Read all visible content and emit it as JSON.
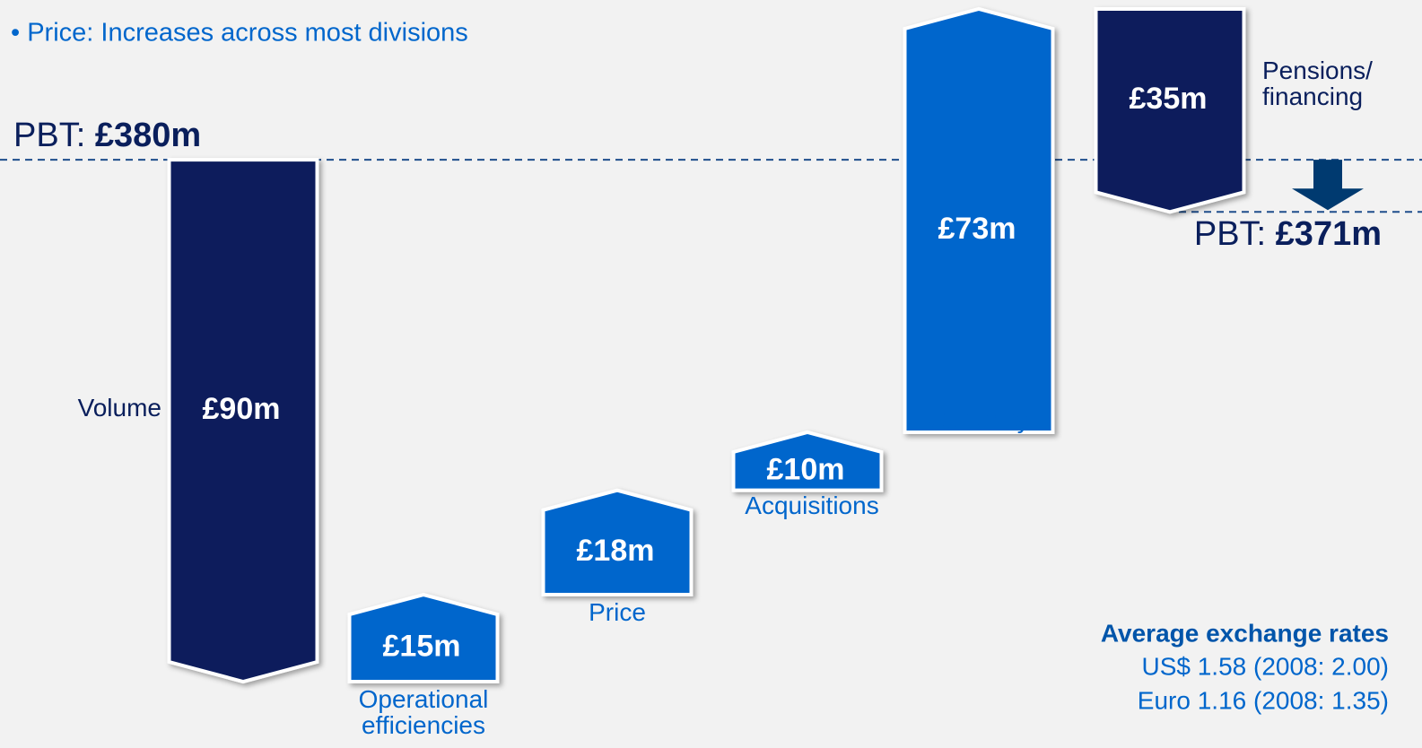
{
  "chart_data": {
    "type": "waterfall",
    "bullet": "• Price: Increases across most divisions",
    "start": {
      "label": "PBT:",
      "value": 380,
      "value_label": "£380m"
    },
    "end": {
      "label": "PBT:",
      "value": 371,
      "value_label": "£371m"
    },
    "categories": [
      "Volume",
      "Operational efficiencies",
      "Price",
      "Acquisitions",
      "Currency",
      "Pensions/ financing"
    ],
    "values": [
      -90,
      15,
      18,
      10,
      73,
      -35
    ],
    "value_labels": [
      "£90m",
      "£15m",
      "£18m",
      "£10m",
      "£73m",
      "£35m"
    ],
    "increase_color": "#0066cc",
    "decrease_color": "#0a1f5c",
    "notes": {
      "title": "Average exchange rates",
      "lines": [
        "US$ 1.58 (2008: 2.00)",
        "Euro 1.16 (2008: 1.35)"
      ]
    }
  }
}
